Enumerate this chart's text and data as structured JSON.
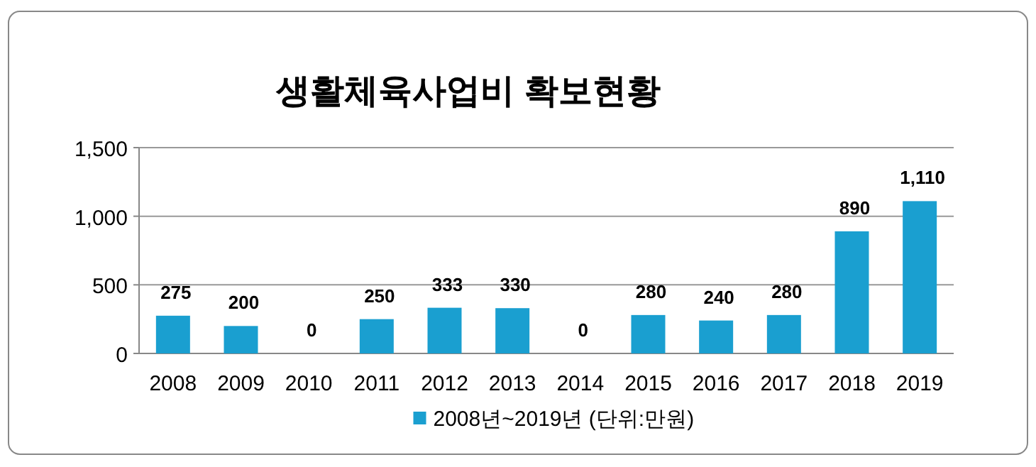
{
  "chart_data": {
    "type": "bar",
    "title": "생활체육사업비 확보현황",
    "categories": [
      "2008",
      "2009",
      "2010",
      "2011",
      "2012",
      "2013",
      "2014",
      "2015",
      "2016",
      "2017",
      "2018",
      "2019"
    ],
    "series": [
      {
        "name": "2008년~2019년 (단위:만원)",
        "color": "#1a9fd0",
        "values": [
          275,
          200,
          0,
          250,
          333,
          330,
          0,
          280,
          240,
          280,
          890,
          1110
        ],
        "value_labels": [
          "275",
          "200",
          "0",
          "250",
          "333",
          "330",
          "0",
          "280",
          "240",
          "280",
          "890",
          "1,110"
        ]
      }
    ],
    "ylim": [
      0,
      1500
    ],
    "yticks": [
      0,
      500,
      {
        "value": 1000,
        "label": "1,000"
      },
      {
        "value": 1500,
        "label": "1,500"
      }
    ],
    "grid": "y",
    "legend": "bottom"
  }
}
